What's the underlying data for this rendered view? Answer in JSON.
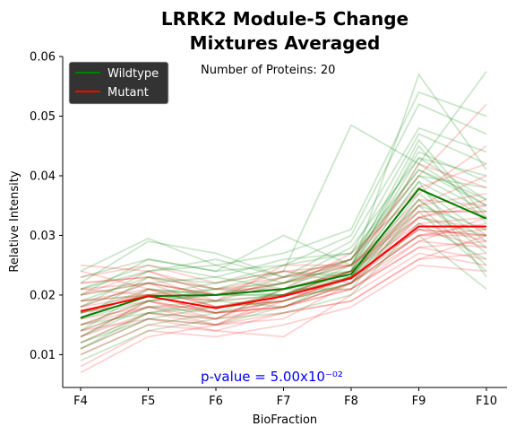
{
  "chart_data": {
    "type": "line",
    "title_line1": "LRRK2 Module-5 Change",
    "title_line2": "Mixtures Averaged",
    "xlabel": "BioFraction",
    "ylabel": "Relative Intensity",
    "categories": [
      "F4",
      "F5",
      "F6",
      "F7",
      "F8",
      "F9",
      "F10"
    ],
    "ylim": [
      0.0045,
      0.06
    ],
    "yticks": [
      0.01,
      0.02,
      0.03,
      0.04,
      0.05,
      0.06
    ],
    "ytick_labels": [
      "0.01",
      "0.02",
      "0.03",
      "0.04",
      "0.05",
      "0.06"
    ],
    "grid": false,
    "legend_position": "top-left",
    "annotation": "Number of Proteins: 20",
    "pvalue_text": "p-value = 5.00x10⁻⁰²",
    "series": [
      {
        "name": "Wildtype",
        "color": "#008000",
        "values": [
          0.0162,
          0.0198,
          0.02,
          0.021,
          0.0235,
          0.0378,
          0.0328
        ]
      },
      {
        "name": "Mutant",
        "color": "#ff0000",
        "values": [
          0.0173,
          0.0198,
          0.0178,
          0.0198,
          0.0228,
          0.0315,
          0.0315
        ]
      }
    ],
    "wildtype_replicates": [
      [
        0.018,
        0.022,
        0.02,
        0.021,
        0.024,
        0.042,
        0.035
      ],
      [
        0.015,
        0.019,
        0.021,
        0.022,
        0.025,
        0.046,
        0.033
      ],
      [
        0.012,
        0.016,
        0.018,
        0.02,
        0.023,
        0.038,
        0.03
      ],
      [
        0.01,
        0.015,
        0.017,
        0.019,
        0.022,
        0.036,
        0.028
      ],
      [
        0.022,
        0.029,
        0.027,
        0.023,
        0.026,
        0.04,
        0.034
      ],
      [
        0.02,
        0.026,
        0.024,
        0.025,
        0.03,
        0.052,
        0.047
      ],
      [
        0.014,
        0.018,
        0.019,
        0.02,
        0.024,
        0.057,
        0.041
      ],
      [
        0.017,
        0.021,
        0.02,
        0.022,
        0.028,
        0.043,
        0.036
      ],
      [
        0.011,
        0.017,
        0.016,
        0.021,
        0.021,
        0.035,
        0.025
      ],
      [
        0.019,
        0.02,
        0.022,
        0.024,
        0.023,
        0.033,
        0.03
      ],
      [
        0.016,
        0.023,
        0.021,
        0.02,
        0.025,
        0.04,
        0.038
      ],
      [
        0.013,
        0.019,
        0.02,
        0.023,
        0.024,
        0.045,
        0.032
      ],
      [
        0.021,
        0.025,
        0.023,
        0.026,
        0.027,
        0.041,
        0.036
      ],
      [
        0.015,
        0.017,
        0.019,
        0.018,
        0.023,
        0.037,
        0.029
      ],
      [
        0.018,
        0.024,
        0.025,
        0.027,
        0.031,
        0.054,
        0.05
      ],
      [
        0.009,
        0.014,
        0.016,
        0.017,
        0.02,
        0.032,
        0.026
      ],
      [
        0.017,
        0.02,
        0.021,
        0.024,
        0.0485,
        0.042,
        0.0575
      ],
      [
        0.012,
        0.017,
        0.018,
        0.019,
        0.022,
        0.03,
        0.021
      ],
      [
        0.02,
        0.022,
        0.023,
        0.021,
        0.026,
        0.044,
        0.039
      ],
      [
        0.014,
        0.021,
        0.02,
        0.02,
        0.024,
        0.039,
        0.023
      ],
      [
        0.024,
        0.0295,
        0.025,
        0.022,
        0.026,
        0.041,
        0.035
      ],
      [
        0.011,
        0.016,
        0.015,
        0.018,
        0.022,
        0.034,
        0.024
      ],
      [
        0.019,
        0.023,
        0.022,
        0.025,
        0.027,
        0.047,
        0.042
      ],
      [
        0.016,
        0.019,
        0.02,
        0.02,
        0.023,
        0.036,
        0.027
      ],
      [
        0.023,
        0.026,
        0.024,
        0.03,
        0.025,
        0.043,
        0.04
      ],
      [
        0.013,
        0.018,
        0.017,
        0.021,
        0.023,
        0.035,
        0.031
      ],
      [
        0.021,
        0.024,
        0.026,
        0.023,
        0.029,
        0.048,
        0.044
      ],
      [
        0.017,
        0.02,
        0.019,
        0.022,
        0.024,
        0.039,
        0.033
      ]
    ],
    "mutant_replicates": [
      [
        0.02,
        0.022,
        0.018,
        0.02,
        0.023,
        0.03,
        0.03
      ],
      [
        0.015,
        0.019,
        0.017,
        0.019,
        0.022,
        0.032,
        0.033
      ],
      [
        0.012,
        0.017,
        0.016,
        0.018,
        0.021,
        0.028,
        0.029
      ],
      [
        0.025,
        0.024,
        0.02,
        0.022,
        0.025,
        0.036,
        0.035
      ],
      [
        0.018,
        0.02,
        0.019,
        0.02,
        0.024,
        0.034,
        0.034
      ],
      [
        0.01,
        0.015,
        0.014,
        0.017,
        0.019,
        0.026,
        0.027
      ],
      [
        0.022,
        0.023,
        0.021,
        0.023,
        0.026,
        0.04,
        0.052
      ],
      [
        0.016,
        0.021,
        0.018,
        0.019,
        0.023,
        0.031,
        0.03
      ],
      [
        0.014,
        0.018,
        0.015,
        0.016,
        0.022,
        0.029,
        0.028
      ],
      [
        0.023,
        0.025,
        0.022,
        0.024,
        0.025,
        0.035,
        0.04
      ],
      [
        0.017,
        0.019,
        0.016,
        0.021,
        0.024,
        0.033,
        0.031
      ],
      [
        0.008,
        0.014,
        0.013,
        0.015,
        0.018,
        0.025,
        0.024
      ],
      [
        0.021,
        0.022,
        0.02,
        0.021,
        0.027,
        0.037,
        0.045
      ],
      [
        0.019,
        0.02,
        0.017,
        0.018,
        0.022,
        0.03,
        0.032
      ],
      [
        0.013,
        0.017,
        0.015,
        0.02,
        0.021,
        0.028,
        0.026
      ],
      [
        0.024,
        0.021,
        0.019,
        0.023,
        0.025,
        0.033,
        0.036
      ],
      [
        0.016,
        0.018,
        0.018,
        0.019,
        0.023,
        0.042,
        0.038
      ],
      [
        0.02,
        0.024,
        0.021,
        0.021,
        0.024,
        0.032,
        0.029
      ],
      [
        0.011,
        0.016,
        0.014,
        0.013,
        0.02,
        0.027,
        0.025
      ],
      [
        0.018,
        0.022,
        0.02,
        0.022,
        0.026,
        0.038,
        0.042
      ],
      [
        0.015,
        0.018,
        0.016,
        0.02,
        0.023,
        0.031,
        0.03
      ],
      [
        0.022,
        0.023,
        0.019,
        0.025,
        0.025,
        0.034,
        0.034
      ],
      [
        0.013,
        0.019,
        0.017,
        0.018,
        0.021,
        0.029,
        0.033
      ],
      [
        0.019,
        0.021,
        0.018,
        0.02,
        0.024,
        0.035,
        0.037
      ],
      [
        0.007,
        0.013,
        0.015,
        0.017,
        0.019,
        0.026,
        0.03
      ],
      [
        0.021,
        0.02,
        0.02,
        0.024,
        0.022,
        0.033,
        0.035
      ],
      [
        0.017,
        0.02,
        0.017,
        0.018,
        0.022,
        0.03,
        0.031
      ],
      [
        0.014,
        0.016,
        0.015,
        0.019,
        0.023,
        0.031,
        0.028
      ]
    ]
  }
}
